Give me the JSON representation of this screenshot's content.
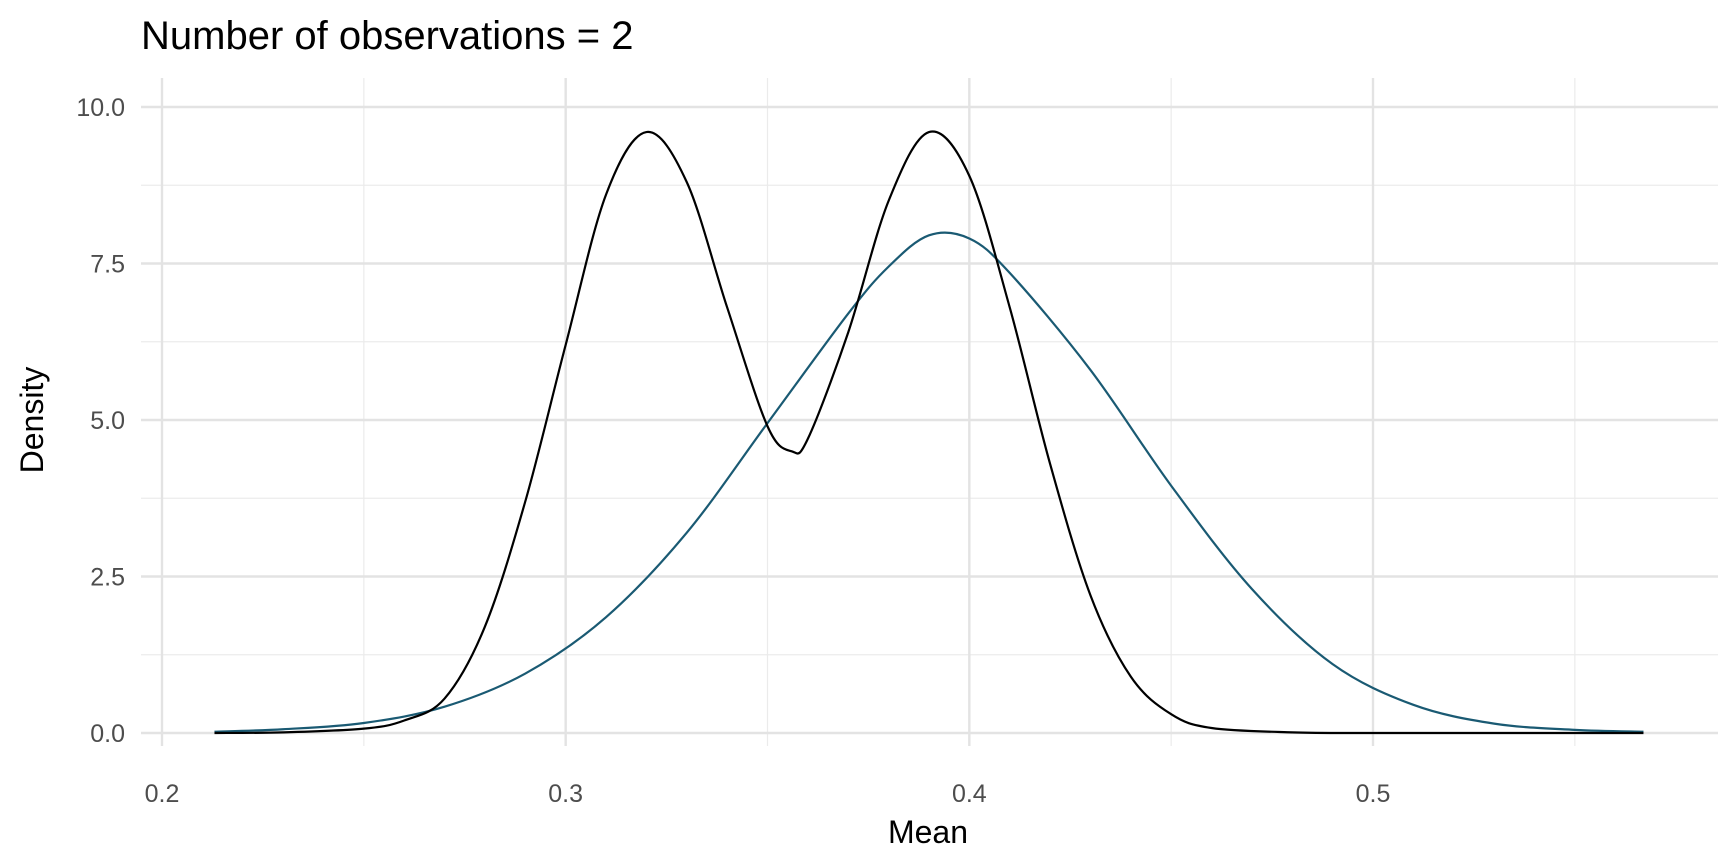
{
  "chart_data": {
    "type": "line",
    "title": "Number of observations = 2",
    "xlabel": "Mean",
    "ylabel": "Density",
    "xlim": [
      0.2,
      0.57
    ],
    "ylim": [
      0,
      10
    ],
    "x_ticks": [
      0.2,
      0.3,
      0.4,
      0.5
    ],
    "x_tick_labels": [
      "0.2",
      "0.3",
      "0.4",
      "0.5"
    ],
    "y_ticks": [
      0,
      2.5,
      5,
      7.5,
      10
    ],
    "y_tick_labels": [
      "0.0",
      "2.5",
      "5.0",
      "7.5",
      "10.0"
    ],
    "grid": true,
    "legend": "none",
    "series": [
      {
        "color": "#000000",
        "x": [
          0.213,
          0.23,
          0.25,
          0.26,
          0.27,
          0.28,
          0.29,
          0.3,
          0.31,
          0.32,
          0.33,
          0.34,
          0.35,
          0.356,
          0.36,
          0.37,
          0.38,
          0.39,
          0.4,
          0.41,
          0.42,
          0.43,
          0.44,
          0.45,
          0.46,
          0.48,
          0.5,
          0.53,
          0.567
        ],
        "y": [
          0.0,
          0.01,
          0.07,
          0.2,
          0.55,
          1.7,
          3.7,
          6.2,
          8.6,
          9.6,
          8.8,
          6.8,
          4.9,
          4.5,
          4.7,
          6.4,
          8.5,
          9.6,
          8.9,
          6.8,
          4.3,
          2.2,
          0.9,
          0.3,
          0.08,
          0.01,
          0.0,
          0.0,
          0.0
        ]
      },
      {
        "color": "#1a5a73",
        "x": [
          0.213,
          0.23,
          0.25,
          0.27,
          0.29,
          0.31,
          0.33,
          0.35,
          0.37,
          0.38,
          0.39,
          0.4,
          0.41,
          0.43,
          0.45,
          0.47,
          0.49,
          0.51,
          0.53,
          0.55,
          0.567
        ],
        "y": [
          0.02,
          0.06,
          0.16,
          0.42,
          0.95,
          1.85,
          3.2,
          4.95,
          6.7,
          7.45,
          7.95,
          7.9,
          7.35,
          5.8,
          3.95,
          2.3,
          1.1,
          0.45,
          0.15,
          0.05,
          0.02
        ]
      }
    ]
  }
}
